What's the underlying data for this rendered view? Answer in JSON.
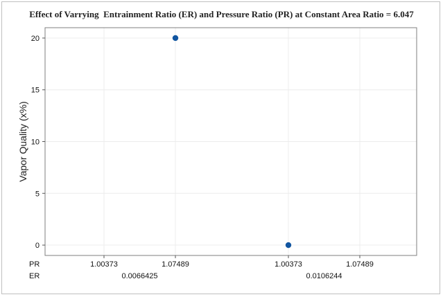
{
  "chart_data": {
    "type": "scatter",
    "title": "Effect of Varrying  Entrainment Ratio (ER) and Pressure Ratio (PR) at Constant Area Ratio = 6.047",
    "ylabel": "Vapor Quality (x%)",
    "ylim": [
      -1,
      21
    ],
    "yticks": [
      0,
      5,
      10,
      15,
      20
    ],
    "ytick_labels": [
      "0",
      "5",
      "10",
      "15",
      "20"
    ],
    "grid": true,
    "x_axis": {
      "levels": [
        {
          "name": "PR",
          "labels": [
            "1.00373",
            "1.07489",
            "1.00373",
            "1.07489"
          ]
        },
        {
          "name": "ER",
          "labels": [
            "0.0066425",
            "0.0106244"
          ]
        }
      ]
    },
    "points": [
      {
        "ER": "0.0066425",
        "PR": "1.07489",
        "category_index": 1,
        "y": 20
      },
      {
        "ER": "0.0106244",
        "PR": "1.00373",
        "category_index": 2,
        "y": 0
      }
    ],
    "marker_color": "#1155a0"
  }
}
